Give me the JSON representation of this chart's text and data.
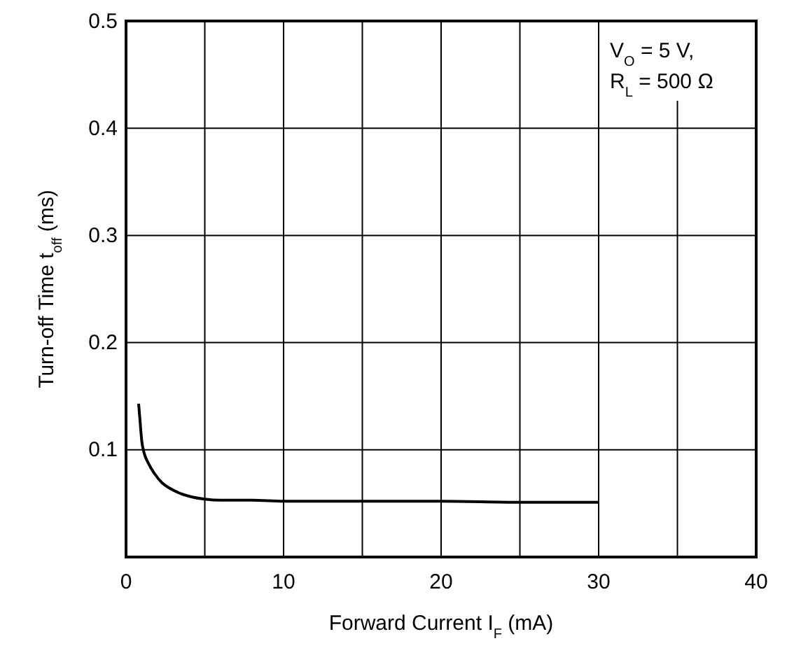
{
  "chart_data": {
    "type": "line",
    "xlabel": "Forward Current  I$_{F}$ (mA)",
    "ylabel": "Turn-off Time  t$_{off}$ (ms)",
    "annotations": [
      "V$_{O}$ = 5 V,",
      "R$_{L}$ = 500 Ω"
    ],
    "xlim": [
      0,
      40
    ],
    "ylim": [
      0,
      0.5
    ],
    "xticks": [
      0,
      {
        "value": 5,
        "label": null
      },
      10,
      {
        "value": 15,
        "label": null
      },
      20,
      {
        "value": 25,
        "label": null
      },
      30,
      {
        "value": 35,
        "label": null
      },
      40
    ],
    "yticks": [
      {
        "value": 0,
        "label": null
      },
      0.1,
      0.2,
      0.3,
      0.4,
      0.5
    ],
    "grid": true,
    "marker": "none",
    "line_style": "solid",
    "series": [
      {
        "color": "#000000",
        "x": [
          0.8,
          0.9,
          1.0,
          1.15,
          1.4,
          1.8,
          2.3,
          2.8,
          3.5,
          4.2,
          5,
          6,
          8,
          10,
          15,
          20,
          25,
          30
        ],
        "values": [
          0.143,
          0.125,
          0.108,
          0.097,
          0.088,
          0.078,
          0.069,
          0.064,
          0.059,
          0.056,
          0.054,
          0.053,
          0.053,
          0.052,
          0.052,
          0.052,
          0.051,
          0.051
        ]
      }
    ]
  }
}
